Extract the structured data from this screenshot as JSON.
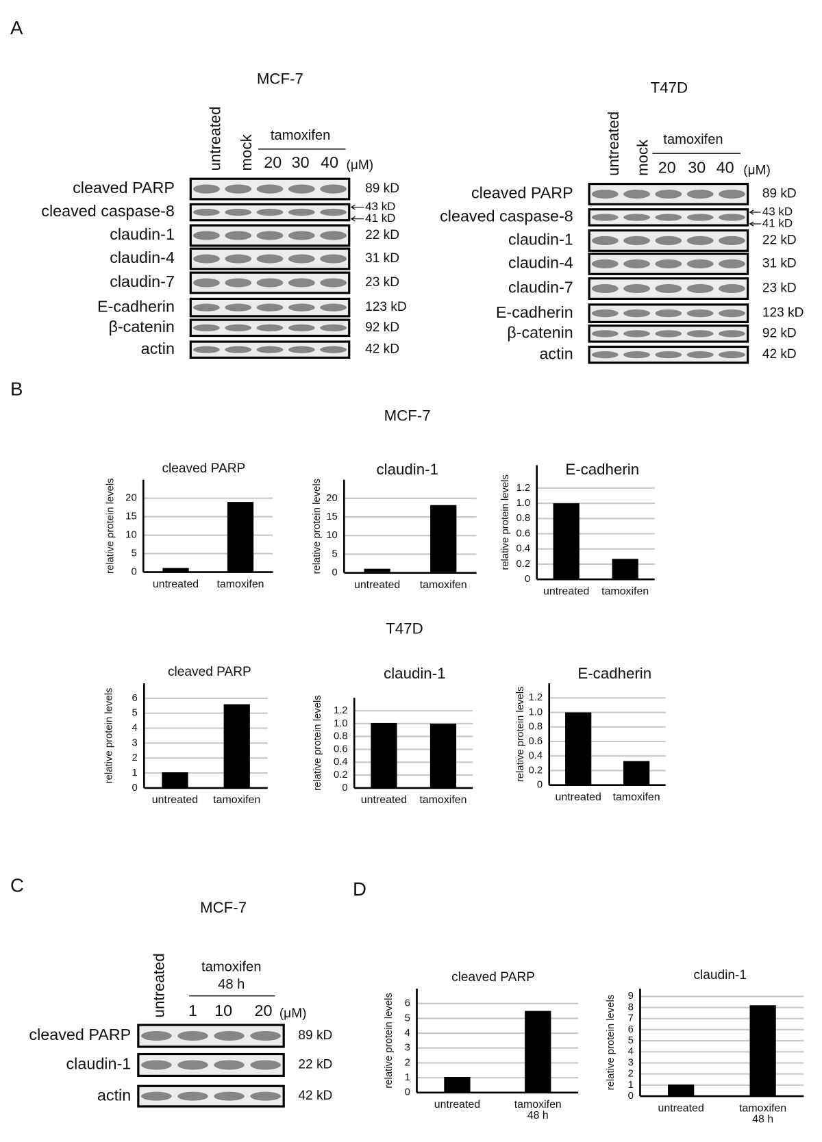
{
  "panels": [
    "A",
    "B",
    "C",
    "D"
  ],
  "blots": [
    {
      "title": "MCF-7",
      "lanes": [
        "untreated",
        "mock"
      ],
      "treatment": "tamoxifen",
      "doses": [
        "20",
        "30",
        "40"
      ],
      "unit": "(μM)",
      "rows": [
        {
          "protein": "cleaved PARP",
          "sizes": [
            "89 kD"
          ]
        },
        {
          "protein": "cleaved caspase-8",
          "sizes": [
            "43 kD",
            "41 kD"
          ]
        },
        {
          "protein": "claudin-1",
          "sizes": [
            "22 kD"
          ]
        },
        {
          "protein": "claudin-4",
          "sizes": [
            "31 kD"
          ]
        },
        {
          "protein": "claudin-7",
          "sizes": [
            "23 kD"
          ]
        },
        {
          "protein": "E-cadherin",
          "sizes": [
            "123 kD"
          ]
        },
        {
          "protein": "β-catenin",
          "sizes": [
            "92 kD"
          ]
        },
        {
          "protein": "actin",
          "sizes": [
            "42 kD"
          ]
        }
      ]
    },
    {
      "title": "T47D",
      "lanes": [
        "untreated",
        "mock"
      ],
      "treatment": "tamoxifen",
      "doses": [
        "20",
        "30",
        "40"
      ],
      "unit": "(μM)",
      "rows": [
        {
          "protein": "cleaved PARP",
          "sizes": [
            "89 kD"
          ]
        },
        {
          "protein": "cleaved caspase-8",
          "sizes": [
            "43 kD",
            "41 kD"
          ]
        },
        {
          "protein": "claudin-1",
          "sizes": [
            "22 kD"
          ]
        },
        {
          "protein": "claudin-4",
          "sizes": [
            "31 kD"
          ]
        },
        {
          "protein": "claudin-7",
          "sizes": [
            "23 kD"
          ]
        },
        {
          "protein": "E-cadherin",
          "sizes": [
            "123 kD"
          ]
        },
        {
          "protein": "β-catenin",
          "sizes": [
            "92 kD"
          ]
        },
        {
          "protein": "actin",
          "sizes": [
            "42 kD"
          ]
        }
      ]
    },
    {
      "title": "MCF-7",
      "lanes": [
        "untreated"
      ],
      "treatment": "tamoxifen",
      "duration": "48 h",
      "doses": [
        "1",
        "10",
        "20"
      ],
      "unit": "(μM)",
      "rows": [
        {
          "protein": "cleaved PARP",
          "sizes": [
            "89 kD"
          ]
        },
        {
          "protein": "claudin-1",
          "sizes": [
            "22 kD"
          ]
        },
        {
          "protein": "actin",
          "sizes": [
            "42 kD"
          ]
        }
      ]
    }
  ],
  "panel_b_titles": [
    "MCF-7",
    "T47D"
  ],
  "chart_data": [
    {
      "type": "bar",
      "title": "cleaved PARP",
      "ylabel": "relative protein levels",
      "categories": [
        "untreated",
        "tamoxifen"
      ],
      "values": [
        1.1,
        19
      ],
      "color": "#000000",
      "ylim": [
        0,
        25
      ],
      "yticks": [
        0,
        5,
        10,
        15,
        20
      ],
      "grid": true
    },
    {
      "type": "bar",
      "title": "claudin-1",
      "ylabel": "relative protein levels",
      "categories": [
        "untreated",
        "tamoxifen"
      ],
      "values": [
        1.1,
        18.2
      ],
      "color": "#000000",
      "ylim": [
        0,
        25
      ],
      "yticks": [
        0,
        5,
        10,
        15,
        20
      ],
      "grid": true
    },
    {
      "type": "bar",
      "title": "E-cadherin",
      "ylabel": "relative protein levels",
      "categories": [
        "untreated",
        "tamoxifen"
      ],
      "values": [
        1.0,
        0.27
      ],
      "color": "#000000",
      "ylim": [
        0,
        1.5
      ],
      "yticks": [
        0,
        0.2,
        0.4,
        0.6,
        0.8,
        {
          "value": 1,
          "label": "1.0"
        },
        1.2
      ],
      "grid": true
    },
    {
      "type": "bar",
      "title": "cleaved PARP",
      "ylabel": "relative protein levels",
      "categories": [
        "untreated",
        "tamoxifen"
      ],
      "values": [
        1.05,
        5.6
      ],
      "color": "#000000",
      "ylim": [
        0,
        7
      ],
      "yticks": [
        0,
        1,
        2,
        3,
        4,
        5,
        6
      ],
      "grid": true
    },
    {
      "type": "bar",
      "title": "claudin-1",
      "ylabel": "relative protein levels",
      "categories": [
        "untreated",
        "tamoxifen"
      ],
      "values": [
        1.01,
        1.0
      ],
      "color": "#000000",
      "ylim": [
        0,
        1.4
      ],
      "yticks": [
        0,
        0.2,
        0.4,
        0.6,
        0.8,
        {
          "value": 1,
          "label": "1.0"
        },
        1.2
      ],
      "grid": true
    },
    {
      "type": "bar",
      "title": "E-cadherin",
      "ylabel": "relative protein levels",
      "categories": [
        "untreated",
        "tamoxifen"
      ],
      "values": [
        1.0,
        0.33
      ],
      "color": "#000000",
      "ylim": [
        0,
        1.4
      ],
      "yticks": [
        0,
        0.2,
        0.4,
        0.6,
        0.8,
        {
          "value": 1,
          "label": "1.0"
        },
        1.2
      ],
      "grid": true
    },
    {
      "type": "bar",
      "title": "cleaved PARP",
      "ylabel": "relative protein levels",
      "categories": [
        "untreated",
        "tamoxifen 48 h"
      ],
      "values": [
        1.05,
        5.5
      ],
      "color": "#000000",
      "ylim": [
        0,
        7
      ],
      "yticks": [
        0,
        1,
        2,
        3,
        4,
        5,
        6
      ],
      "grid": true
    },
    {
      "type": "bar",
      "title": "claudin-1",
      "ylabel": "relative protein levels",
      "categories": [
        "untreated",
        "tamoxifen 48 h"
      ],
      "values": [
        1.05,
        8.2
      ],
      "color": "#000000",
      "ylim": [
        0,
        9.7
      ],
      "yticks": [
        0,
        1,
        2,
        3,
        4,
        5,
        6,
        7,
        8,
        9
      ],
      "grid": true
    }
  ]
}
